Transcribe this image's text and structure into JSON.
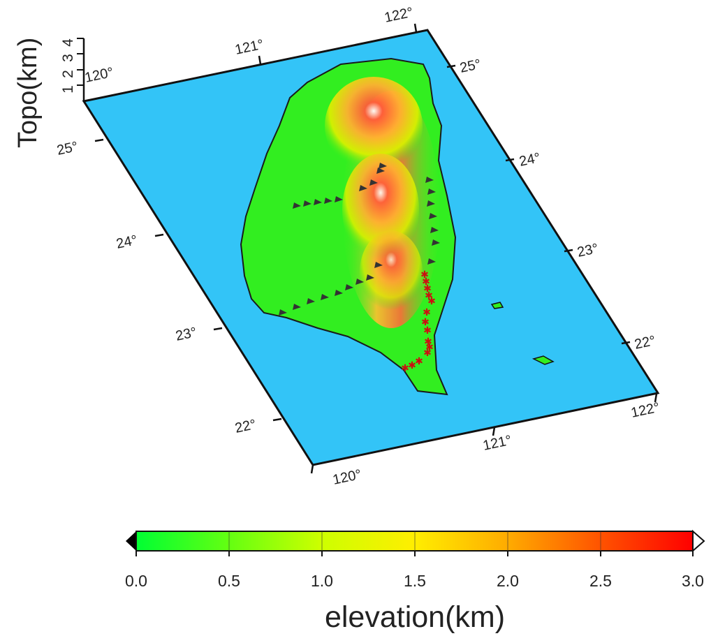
{
  "map": {
    "type": "3d-perspective-topography",
    "z_axis_title": "Topo(km)",
    "z_ticks": [
      "1",
      "2",
      "3",
      "4"
    ],
    "lon_ticks_near": [
      "120°",
      "121°",
      "122°"
    ],
    "lon_ticks_far": [
      "120°",
      "121°",
      "122°"
    ],
    "lat_ticks_left": [
      "22°",
      "23°",
      "24°",
      "25°"
    ],
    "lat_ticks_right": [
      "22°",
      "23°",
      "24°",
      "25°"
    ],
    "colors": {
      "ocean": "#33c4f7",
      "frame": "#111111",
      "stations": "#333333",
      "faults": "#cc1111"
    },
    "features": {
      "terrain": "Taiwan topography shaded by elevation",
      "station_triangles": "dark triangle markers along survey lines",
      "red_markers": "red star markers along the east coast"
    }
  },
  "colorbar": {
    "title": "elevation(km)",
    "ticks": [
      "0.0",
      "0.5",
      "1.0",
      "1.5",
      "2.0",
      "2.5",
      "3.0"
    ],
    "range": [
      0,
      3.0
    ],
    "colors": [
      "#00ff33",
      "#66ff11",
      "#ccff00",
      "#ffee00",
      "#ffaa00",
      "#ff5500",
      "#ff0000"
    ],
    "low_end_color": "#000000",
    "high_end_color": "#ffffff"
  }
}
